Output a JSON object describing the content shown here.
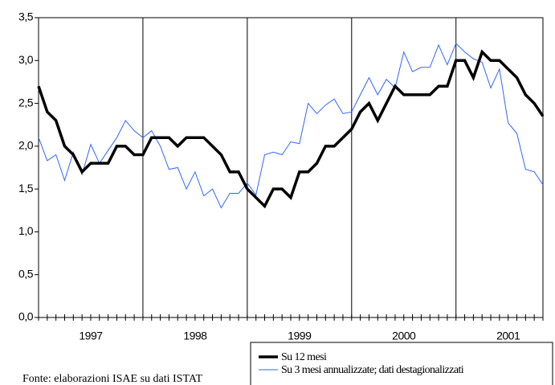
{
  "chart_data": {
    "type": "line",
    "categories": [
      null,
      null,
      null,
      null,
      null,
      null,
      "1997",
      null,
      null,
      null,
      null,
      null,
      null,
      null,
      null,
      null,
      null,
      null,
      "1998",
      null,
      null,
      null,
      null,
      null,
      null,
      null,
      null,
      null,
      null,
      null,
      "1999",
      null,
      null,
      null,
      null,
      null,
      null,
      null,
      null,
      null,
      null,
      null,
      "2000",
      null,
      null,
      null,
      null,
      null,
      null,
      null,
      null,
      null,
      null,
      null,
      "2001",
      null,
      null,
      null,
      null
    ],
    "series": [
      {
        "name": "Su 12 mesi",
        "color": "#000000",
        "values": [
          2.7,
          2.4,
          2.3,
          2.0,
          1.9,
          1.7,
          1.8,
          1.8,
          1.8,
          2.0,
          2.0,
          1.9,
          1.9,
          2.1,
          2.1,
          2.1,
          2.0,
          2.1,
          2.1,
          2.1,
          2.0,
          1.9,
          1.7,
          1.7,
          1.5,
          1.4,
          1.3,
          1.5,
          1.5,
          1.4,
          1.7,
          1.7,
          1.8,
          2.0,
          2.0,
          2.1,
          2.2,
          2.4,
          2.5,
          2.3,
          2.5,
          2.7,
          2.6,
          2.6,
          2.6,
          2.6,
          2.7,
          2.7,
          3.0,
          3.0,
          2.8,
          3.1,
          3.0,
          3.0,
          2.9,
          2.8,
          2.6,
          2.5,
          2.35
        ]
      },
      {
        "name": "Su 3 mesi annualizzate; dati destagionalizzati",
        "color": "#3366ff",
        "values": [
          2.1,
          1.83,
          1.9,
          1.6,
          1.93,
          1.67,
          2.02,
          1.8,
          1.95,
          2.1,
          2.3,
          2.18,
          2.1,
          2.18,
          2.0,
          1.73,
          1.75,
          1.5,
          1.7,
          1.42,
          1.5,
          1.28,
          1.45,
          1.45,
          1.57,
          1.43,
          1.9,
          1.93,
          1.9,
          2.05,
          2.03,
          2.5,
          2.38,
          2.48,
          2.55,
          2.38,
          2.4,
          2.6,
          2.8,
          2.6,
          2.78,
          2.68,
          3.1,
          2.87,
          2.92,
          2.92,
          3.18,
          2.95,
          3.2,
          3.1,
          3.02,
          2.98,
          2.68,
          2.9,
          2.27,
          2.15,
          1.73,
          1.7,
          1.55
        ]
      }
    ],
    "ylim": [
      0,
      3.5
    ],
    "yticks": [
      {
        "value": 0,
        "label": "0,0"
      },
      {
        "value": 0.5,
        "label": "0,5"
      },
      {
        "value": 1,
        "label": "1,0"
      },
      {
        "value": 1.5,
        "label": "1,5"
      },
      {
        "value": 2,
        "label": "2,0"
      },
      {
        "value": 2.5,
        "label": "2,5"
      },
      {
        "value": 3,
        "label": "3,0"
      },
      {
        "value": 3.5,
        "label": "3,5"
      }
    ],
    "source": "Fonte: elaborazioni ISAE su dati ISTAT"
  }
}
